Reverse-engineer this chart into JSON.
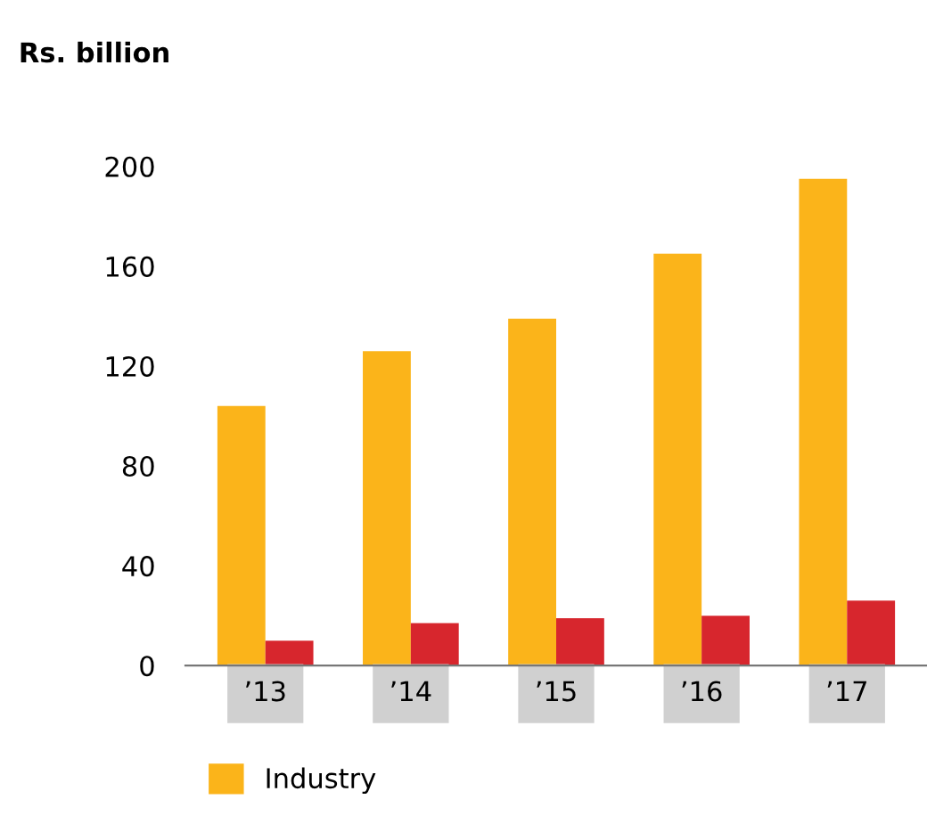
{
  "chart_data": {
    "type": "bar",
    "ylabel": "Rs. billion",
    "categories": [
      "’13",
      "’14",
      "’15",
      "’16",
      "’17"
    ],
    "series": [
      {
        "name": "Industry",
        "color": "#fbb41a",
        "values": [
          104,
          126,
          139,
          165,
          195
        ]
      },
      {
        "color": "#d7262d",
        "values": [
          10,
          17,
          19,
          20,
          26
        ]
      }
    ],
    "ylim": [
      0,
      200
    ],
    "yticks": [
      0,
      40,
      80,
      120,
      160,
      200
    ],
    "grid": false,
    "legend": "bottom"
  }
}
